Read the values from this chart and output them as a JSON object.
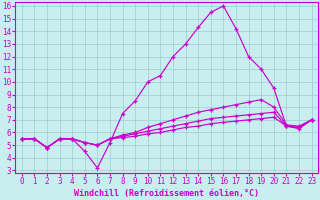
{
  "xlabel": "Windchill (Refroidissement éolien,°C)",
  "bg_color": "#c8eef0",
  "grid_color": "#9ecece",
  "line_color": "#cc00cc",
  "xlim": [
    -0.5,
    23.5
  ],
  "ylim": [
    2.8,
    16.3
  ],
  "xticks": [
    0,
    1,
    2,
    3,
    4,
    5,
    6,
    7,
    8,
    9,
    10,
    11,
    12,
    13,
    14,
    15,
    16,
    17,
    18,
    19,
    20,
    21,
    22,
    23
  ],
  "yticks": [
    3,
    4,
    5,
    6,
    7,
    8,
    9,
    10,
    11,
    12,
    13,
    14,
    15,
    16
  ],
  "lines": [
    [
      5.5,
      5.5,
      4.8,
      5.5,
      5.5,
      4.5,
      3.2,
      5.2,
      7.5,
      8.5,
      10.0,
      10.5,
      12.0,
      13.0,
      14.3,
      15.5,
      16.0,
      14.2,
      12.0,
      11.0,
      9.5,
      6.5,
      6.3,
      7.0
    ],
    [
      5.5,
      5.5,
      4.8,
      5.5,
      5.5,
      5.2,
      5.0,
      5.5,
      5.8,
      6.0,
      6.4,
      6.7,
      7.0,
      7.3,
      7.6,
      7.8,
      8.0,
      8.2,
      8.4,
      8.6,
      8.0,
      6.6,
      6.5,
      7.0
    ],
    [
      5.5,
      5.5,
      4.8,
      5.5,
      5.5,
      5.2,
      5.0,
      5.5,
      5.7,
      5.9,
      6.1,
      6.3,
      6.5,
      6.7,
      6.9,
      7.1,
      7.2,
      7.3,
      7.4,
      7.5,
      7.6,
      6.5,
      6.4,
      7.0
    ],
    [
      5.5,
      5.5,
      4.8,
      5.5,
      5.5,
      5.2,
      5.0,
      5.5,
      5.6,
      5.7,
      5.9,
      6.0,
      6.2,
      6.4,
      6.5,
      6.7,
      6.8,
      6.9,
      7.0,
      7.1,
      7.2,
      6.5,
      6.4,
      7.0
    ]
  ],
  "figsize": [
    3.2,
    2.0
  ],
  "dpi": 100
}
